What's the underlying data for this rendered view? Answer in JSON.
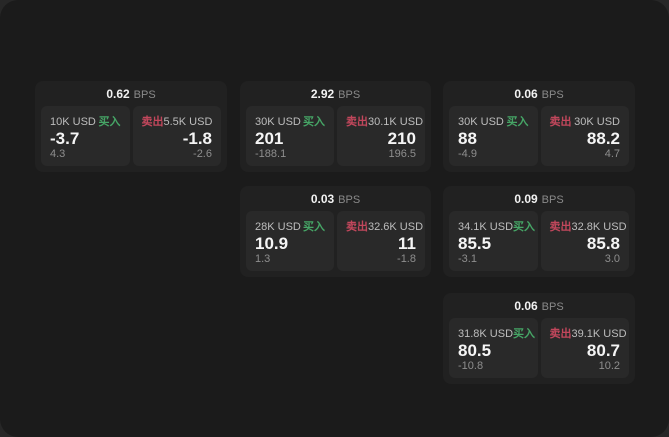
{
  "labels": {
    "bps_unit": "BPS",
    "buy": "买入",
    "sell": "卖出"
  },
  "colors": {
    "outer_background": "#272727",
    "page_surface": "#1b1b1b",
    "card_background": "#212121",
    "panel_background": "#292929",
    "buy_green": "#46a566",
    "sell_red": "#c2475c",
    "primary_text": "#f5f5f5",
    "muted_text": "#8e8e8e"
  },
  "cards": [
    {
      "bps": "0.62",
      "buy": {
        "amount": "10K USD",
        "value": "-3.7",
        "sub": "4.3"
      },
      "sell": {
        "amount": "5.5K USD",
        "value": "-1.8",
        "sub": "-2.6"
      }
    },
    {
      "bps": "2.92",
      "buy": {
        "amount": "30K USD",
        "value": "201",
        "sub": "-188.1"
      },
      "sell": {
        "amount": "30.1K USD",
        "value": "210",
        "sub": "196.5"
      }
    },
    {
      "bps": "0.06",
      "buy": {
        "amount": "30K USD",
        "value": "88",
        "sub": "-4.9"
      },
      "sell": {
        "amount": "30K USD",
        "value": "88.2",
        "sub": "4.7"
      }
    },
    {
      "bps": "0.03",
      "buy": {
        "amount": "28K USD",
        "value": "10.9",
        "sub": "1.3"
      },
      "sell": {
        "amount": "32.6K USD",
        "value": "11",
        "sub": "-1.8"
      }
    },
    {
      "bps": "0.09",
      "buy": {
        "amount": "34.1K USD",
        "value": "85.5",
        "sub": "-3.1"
      },
      "sell": {
        "amount": "32.8K USD",
        "value": "85.8",
        "sub": "3.0"
      }
    },
    {
      "bps": "0.06",
      "buy": {
        "amount": "31.8K USD",
        "value": "80.5",
        "sub": "-10.8"
      },
      "sell": {
        "amount": "39.1K USD",
        "value": "80.7",
        "sub": "10.2"
      }
    }
  ]
}
